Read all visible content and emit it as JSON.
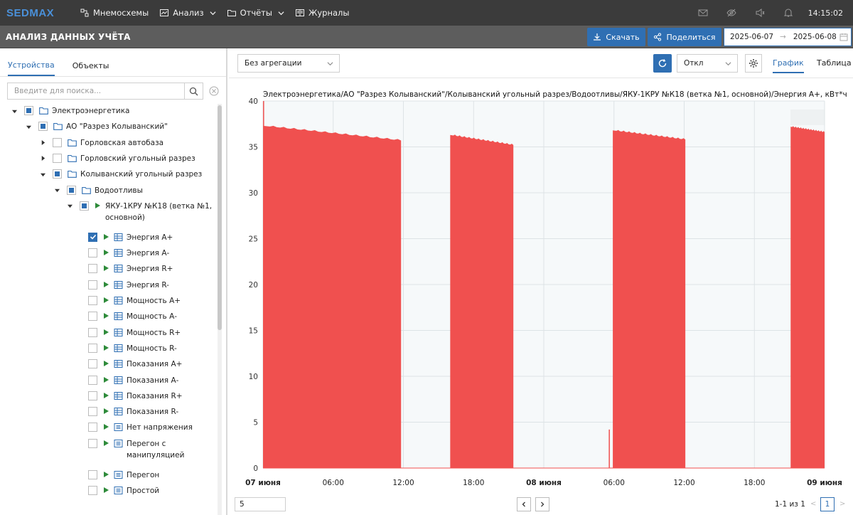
{
  "app": {
    "logo": "SEDMAX",
    "time": "14:15:02"
  },
  "nav": [
    {
      "label": "Мнемосхемы",
      "icon": "mnemo-icon",
      "dropdown": false
    },
    {
      "label": "Анализ",
      "icon": "chart-icon",
      "dropdown": true
    },
    {
      "label": "Отчёты",
      "icon": "folder-icon",
      "dropdown": true
    },
    {
      "label": "Журналы",
      "icon": "journal-icon",
      "dropdown": false
    }
  ],
  "header": {
    "title": "АНАЛИЗ ДАННЫХ УЧЁТА",
    "download_label": "Скачать",
    "share_label": "Поделиться",
    "date_from": "2025-06-07",
    "date_to": "2025-06-08"
  },
  "left": {
    "tabs": [
      "Устройства",
      "Объекты"
    ],
    "search_placeholder": "Введите для поиска...",
    "tree": [
      {
        "label": "Электроэнергетика",
        "level": 0,
        "toggle": "open",
        "check": "partial",
        "icon": "folder"
      },
      {
        "label": "АО \"Разрез Колыванский\"",
        "level": 1,
        "toggle": "open",
        "check": "partial",
        "icon": "folder"
      },
      {
        "label": "Горловская автобаза",
        "level": 2,
        "toggle": "closed",
        "check": "none",
        "icon": "folder"
      },
      {
        "label": "Горловский угольный разрез",
        "level": 2,
        "toggle": "closed",
        "check": "none",
        "icon": "folder"
      },
      {
        "label": "Колыванский угольный разрез",
        "level": 2,
        "toggle": "open",
        "check": "partial",
        "icon": "folder"
      },
      {
        "label": "Водоотливы",
        "level": 3,
        "toggle": "open",
        "check": "partial",
        "icon": "folder"
      },
      {
        "label": "ЯКУ-1КРУ №К18 (ветка №1,",
        "label2": "основной)",
        "level": 4,
        "toggle": "open",
        "check": "partial",
        "icon": "play"
      },
      {
        "label": "Энергия А+",
        "level": 5,
        "check": "checked",
        "icon": "grid"
      },
      {
        "label": "Энергия А-",
        "level": 5,
        "check": "none",
        "icon": "grid"
      },
      {
        "label": "Энергия R+",
        "level": 5,
        "check": "none",
        "icon": "grid"
      },
      {
        "label": "Энергия R-",
        "level": 5,
        "check": "none",
        "icon": "grid"
      },
      {
        "label": "Мощность А+",
        "level": 5,
        "check": "none",
        "icon": "grid"
      },
      {
        "label": "Мощность А-",
        "level": 5,
        "check": "none",
        "icon": "grid"
      },
      {
        "label": "Мощность R+",
        "level": 5,
        "check": "none",
        "icon": "grid"
      },
      {
        "label": "Мощность R-",
        "level": 5,
        "check": "none",
        "icon": "grid"
      },
      {
        "label": "Показания А+",
        "level": 5,
        "check": "none",
        "icon": "grid"
      },
      {
        "label": "Показания А-",
        "level": 5,
        "check": "none",
        "icon": "grid"
      },
      {
        "label": "Показания R+",
        "level": 5,
        "check": "none",
        "icon": "grid"
      },
      {
        "label": "Показания R-",
        "level": 5,
        "check": "none",
        "icon": "grid"
      },
      {
        "label": "Нет напряжения",
        "level": 5,
        "check": "none",
        "icon": "list"
      },
      {
        "label": "Перегон с",
        "label2": "манипуляцией",
        "level": 5,
        "check": "none",
        "icon": "list"
      },
      {
        "label": "Перегон",
        "level": 5,
        "check": "none",
        "icon": "list"
      },
      {
        "label": "Простой",
        "level": 5,
        "check": "none",
        "icon": "list"
      }
    ]
  },
  "toolbar": {
    "aggregation": "Без агрегации",
    "refresh_mode": "Откл",
    "view_tabs": [
      "График",
      "Таблица"
    ]
  },
  "chart_data": {
    "type": "area",
    "title": "Электроэнергетика/АО \"Разрез Колыванский\"/Колыванский угольный разрез/Водоотливы/ЯКУ-1КРУ №К18 (ветка №1, основной)/Энергия А+, кВт*ч",
    "color": "#f0504f",
    "ylim": [
      0,
      40
    ],
    "yticks": [
      0,
      5,
      10,
      15,
      20,
      25,
      30,
      35,
      40
    ],
    "xlim_hours": [
      0,
      48
    ],
    "xticks": [
      {
        "h": 0,
        "label": "07 июня",
        "bold": true
      },
      {
        "h": 6,
        "label": "06:00",
        "bold": false
      },
      {
        "h": 12,
        "label": "12:00",
        "bold": false
      },
      {
        "h": 18,
        "label": "18:00",
        "bold": false
      },
      {
        "h": 24,
        "label": "08 июня",
        "bold": true
      },
      {
        "h": 30,
        "label": "06:00",
        "bold": false
      },
      {
        "h": 36,
        "label": "12:00",
        "bold": false
      },
      {
        "h": 42,
        "label": "18:00",
        "bold": false
      },
      {
        "h": 48,
        "label": "09 июня",
        "bold": true
      }
    ],
    "segments": [
      {
        "start_h": 0.0,
        "end_h": 11.8,
        "start_v": 37.3,
        "end_v": 35.7
      },
      {
        "start_h": 16.0,
        "end_h": 21.4,
        "start_v": 36.3,
        "end_v": 35.2
      },
      {
        "start_h": 29.9,
        "end_h": 36.1,
        "start_v": 36.8,
        "end_v": 35.8
      },
      {
        "start_h": 45.1,
        "end_h": 48.0,
        "start_v": 37.2,
        "end_v": 36.6
      }
    ],
    "spikes": [
      {
        "h": 0.05,
        "v": 40
      },
      {
        "h": 29.6,
        "v": 4.2
      }
    ]
  },
  "footer": {
    "page_size": "5",
    "page_info": "1-1 из 1",
    "current_page": "1"
  }
}
